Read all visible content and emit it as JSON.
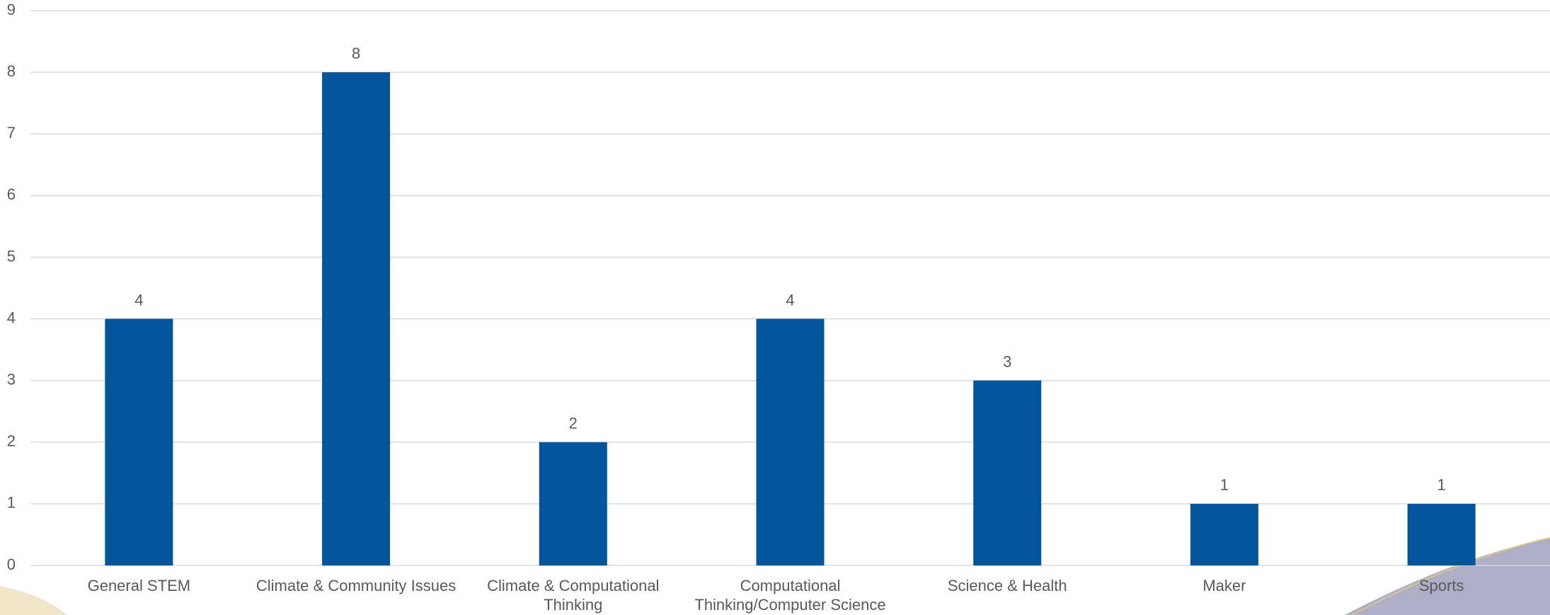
{
  "chart_data": {
    "type": "bar",
    "categories": [
      "General STEM",
      "Climate & Community Issues",
      "Climate & Computational Thinking",
      "Computational Thinking/Computer Science",
      "Science & Health",
      "Maker",
      "Sports"
    ],
    "values": [
      4,
      8,
      2,
      4,
      3,
      1,
      1
    ],
    "color": "#02559b",
    "ylim": [
      0,
      9
    ],
    "yticks": [
      0,
      1,
      2,
      3,
      4,
      5,
      6,
      7,
      8,
      9
    ],
    "grid": true
  }
}
